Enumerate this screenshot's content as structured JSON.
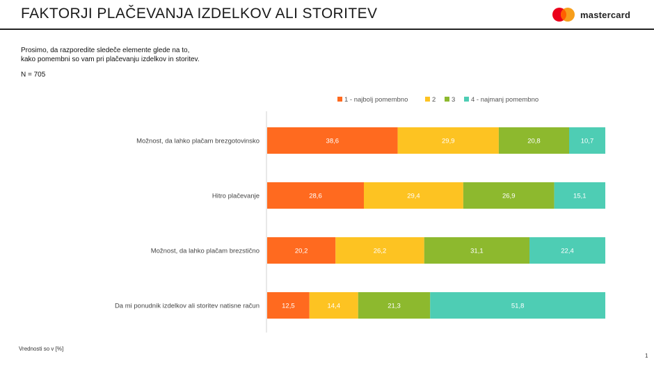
{
  "header": {
    "title": "FAKTORJI PLAČEVANJA IZDELKOV ALI STORITEV",
    "brand": "mastercard"
  },
  "question": {
    "line1": "Prosimo, da razporedite sledeče elemente glede na to,",
    "line2": "kako pomembni so vam pri plačevanju izdelkov in storitev.",
    "n": "N = 705"
  },
  "footer": {
    "note": "Vrednosti so v [%]",
    "page": "1"
  },
  "colors": {
    "brand_red": "#eb001b",
    "brand_yellow": "#f79e1b",
    "brand_overlap": "#ff5f00"
  },
  "chart_data": {
    "type": "bar",
    "orientation": "horizontal",
    "stacked": true,
    "normalized_100": true,
    "categories": [
      "Možnost, da lahko plačam brezgotovinsko",
      "Hitro plačevanje",
      "Možnost, da lahko plačam brezstično",
      "Da mi ponudnik izdelkov ali storitev natisne račun"
    ],
    "series": [
      {
        "name": "1 - najbolj pomembno",
        "color": "#ff6a1f",
        "values": [
          38.6,
          28.6,
          20.2,
          12.5
        ],
        "labels": [
          "38,6",
          "28,6",
          "20,2",
          "12,5"
        ]
      },
      {
        "name": "2",
        "color": "#fdc322",
        "values": [
          29.9,
          29.4,
          26.2,
          14.4
        ],
        "labels": [
          "29,9",
          "29,4",
          "26,2",
          "14,4"
        ]
      },
      {
        "name": "3",
        "color": "#8db92e",
        "values": [
          20.8,
          26.9,
          31.1,
          21.3
        ],
        "labels": [
          "20,8",
          "26,9",
          "31,1",
          "21,3"
        ]
      },
      {
        "name": "4 - najmanj pomembno",
        "color": "#4ecdb4",
        "values": [
          10.7,
          15.1,
          22.4,
          51.8
        ],
        "labels": [
          "10,7",
          "15,1",
          "22,4",
          "51,8"
        ]
      }
    ],
    "legend_position": "top",
    "grid": false
  }
}
